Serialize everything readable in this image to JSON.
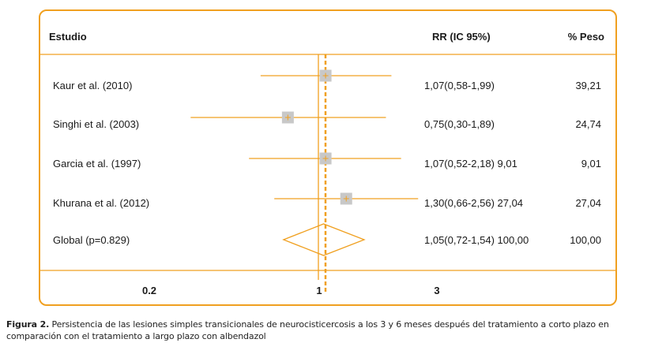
{
  "colors": {
    "accent": "#f0a020",
    "box": "#c8c8c8"
  },
  "headers": {
    "study": "Estudio",
    "rr": "RR (IC 95%)",
    "weight": "% Peso"
  },
  "rows": [
    {
      "label": "Kaur et al. (2010)",
      "rr_text": "1,07(0,58-1,99)",
      "weight_text": "39,21"
    },
    {
      "label": "Singhi et al. (2003)",
      "rr_text": "0,75(0,30-1,89)",
      "weight_text": "24,74"
    },
    {
      "label": "Garcia et al. (1997)",
      "rr_text": "1,07(0,52-2,18) 9,01",
      "weight_text": "9,01"
    },
    {
      "label": "Khurana et al. (2012)",
      "rr_text": "1,30(0,66-2,56) 27,04",
      "weight_text": "27,04"
    },
    {
      "label": "Global (p=0.829)",
      "rr_text": "1,05(0,72-1,54) 100,00",
      "weight_text": "100,00"
    }
  ],
  "chart_data": {
    "type": "forest",
    "x_scale": "log",
    "xlim": [
      0.17,
      3.3
    ],
    "x_ticks": [
      "0.2",
      "1",
      "3"
    ],
    "null_line": 1,
    "studies": [
      {
        "name": "Kaur et al. (2010)",
        "rr": 1.07,
        "ci": [
          0.58,
          1.99
        ],
        "weight": 39.21
      },
      {
        "name": "Singhi et al. (2003)",
        "rr": 0.75,
        "ci": [
          0.3,
          1.89
        ],
        "weight": 24.74
      },
      {
        "name": "Garcia et al. (1997)",
        "rr": 1.07,
        "ci": [
          0.52,
          2.18
        ],
        "weight": 9.01
      },
      {
        "name": "Khurana et al. (2012)",
        "rr": 1.3,
        "ci": [
          0.66,
          2.56
        ],
        "weight": 27.04
      }
    ],
    "overall": {
      "name": "Global (p=0.829)",
      "rr": 1.05,
      "ci": [
        0.72,
        1.54
      ],
      "weight": 100.0
    }
  },
  "caption": {
    "figure_label": "Figura 2.",
    "text": "Persistencia de las lesiones simples transicionales de neurocisticercosis a los 3 y 6 meses después del tratamiento a corto plazo en comparación con el tratamiento a largo plazo con albendazol"
  }
}
